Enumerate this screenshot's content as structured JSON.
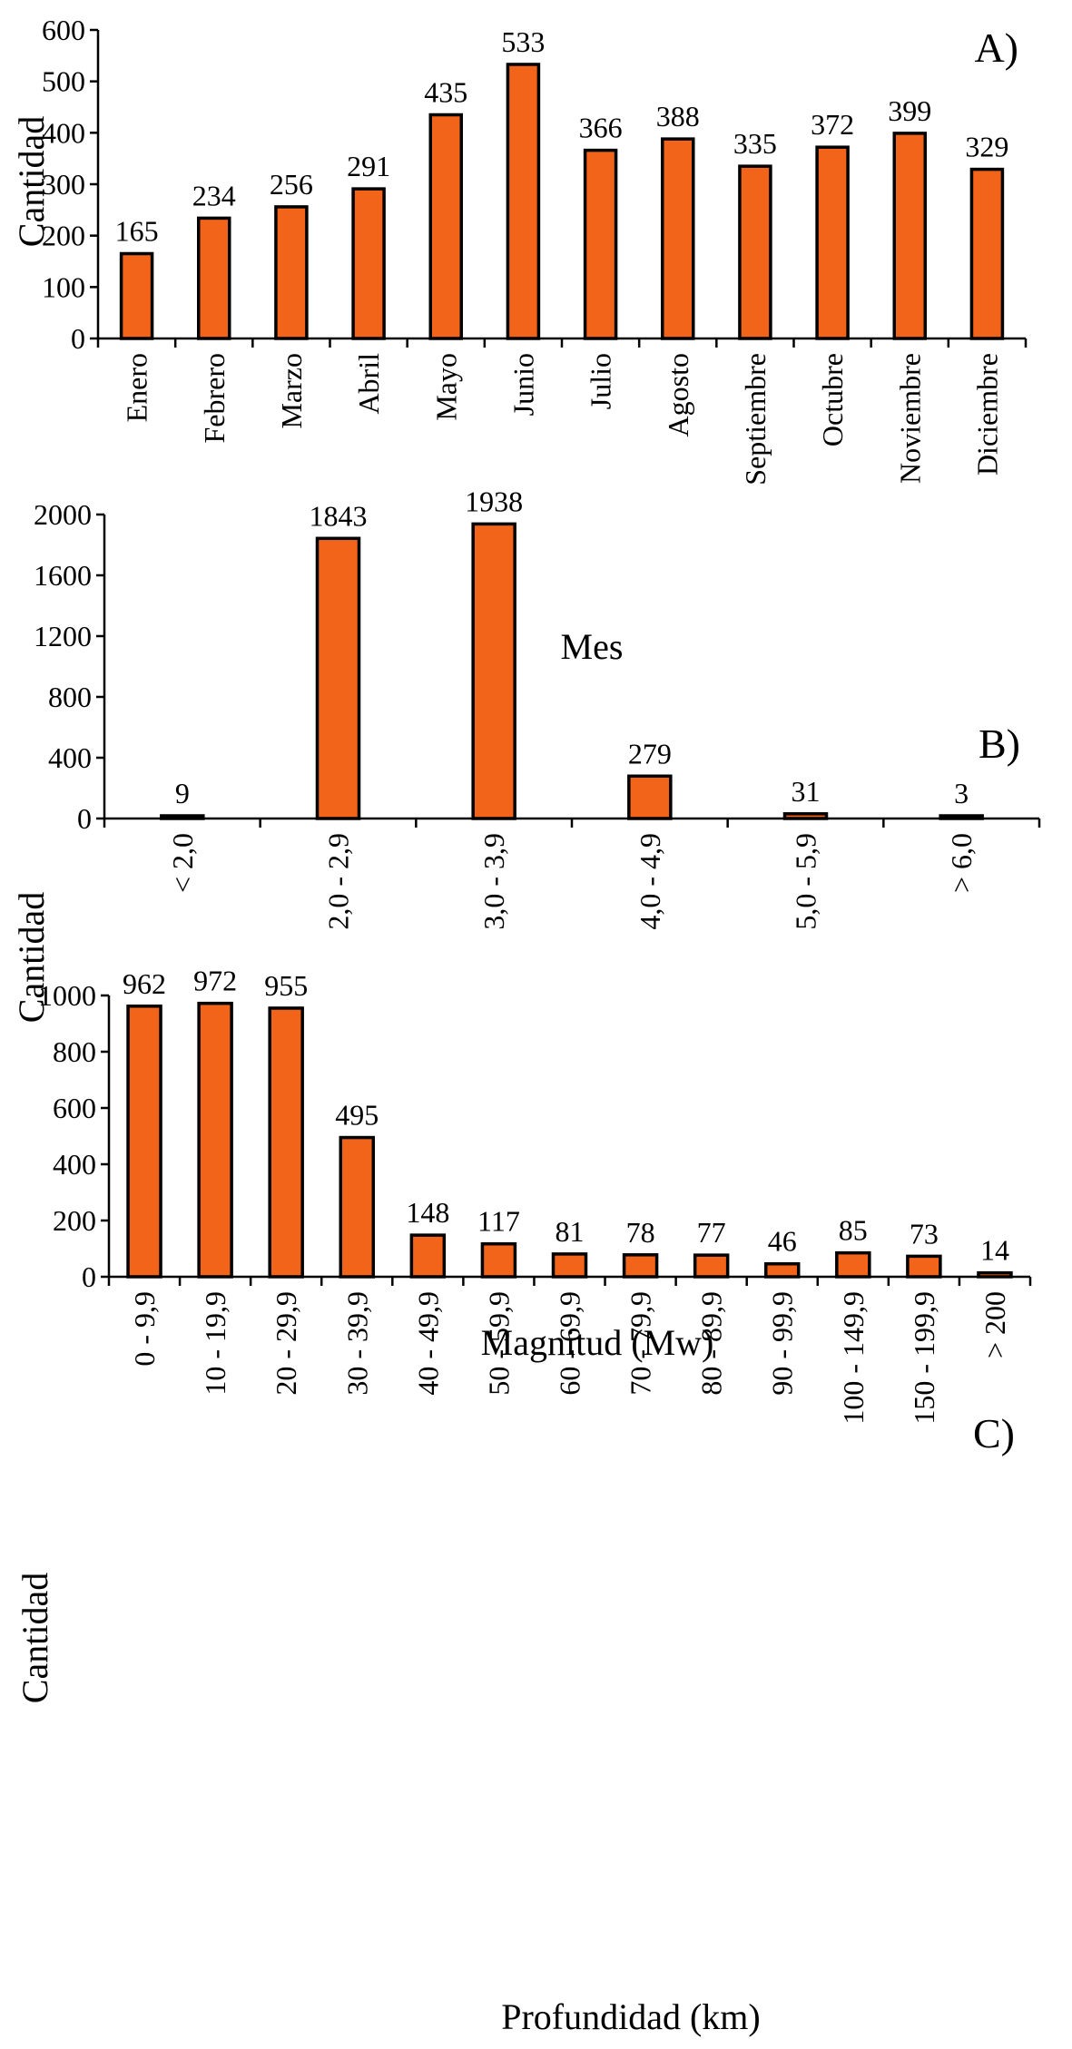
{
  "bar_color": "#F26419",
  "chart_data": [
    {
      "id": "A",
      "type": "bar",
      "panel_label": "A)",
      "title": "",
      "xlabel": "Mes",
      "ylabel": "Cantidad",
      "ylim": [
        0,
        600
      ],
      "yticks": [
        0,
        100,
        200,
        300,
        400,
        500,
        600
      ],
      "categories": [
        "Enero",
        "Febrero",
        "Marzo",
        "Abril",
        "Mayo",
        "Junio",
        "Julio",
        "Agosto",
        "Septiembre",
        "Octubre",
        "Noviembre",
        "Diciembre"
      ],
      "values": [
        165,
        234,
        256,
        291,
        435,
        533,
        366,
        388,
        335,
        372,
        399,
        329
      ],
      "grid": false,
      "legend": "none"
    },
    {
      "id": "B",
      "type": "bar",
      "panel_label": "B)",
      "title": "",
      "xlabel": "Magnitud  (Mw)",
      "ylabel": "Cantidad",
      "ylim": [
        0,
        2000
      ],
      "yticks": [
        0,
        400,
        800,
        1200,
        1600,
        2000
      ],
      "categories": [
        "< 2,0",
        "2,0 - 2,9",
        "3,0 - 3,9",
        "4,0 - 4,9",
        "5,0 - 5,9",
        "> 6,0"
      ],
      "values": [
        9,
        1843,
        1938,
        279,
        31,
        3
      ],
      "grid": false,
      "legend": "none"
    },
    {
      "id": "C",
      "type": "bar",
      "panel_label": "C)",
      "title": "",
      "xlabel": "Profundidad (km)",
      "ylabel": "Cantidad",
      "ylim": [
        0,
        1000
      ],
      "yticks": [
        0,
        200,
        400,
        600,
        800,
        1000
      ],
      "categories": [
        "0 - 9,9",
        "10 - 19,9",
        "20 - 29,9",
        "30 - 39,9",
        "40 - 49,9",
        "50 - 59,9",
        "60 - 69,9",
        "70 - 79,9",
        "80 - 89,9",
        "90 - 99,9",
        "100 - 149,9",
        "150 - 199,9",
        "> 200"
      ],
      "values": [
        962,
        972,
        955,
        495,
        148,
        117,
        81,
        78,
        77,
        46,
        85,
        73,
        14
      ],
      "grid": false,
      "legend": "none"
    }
  ]
}
